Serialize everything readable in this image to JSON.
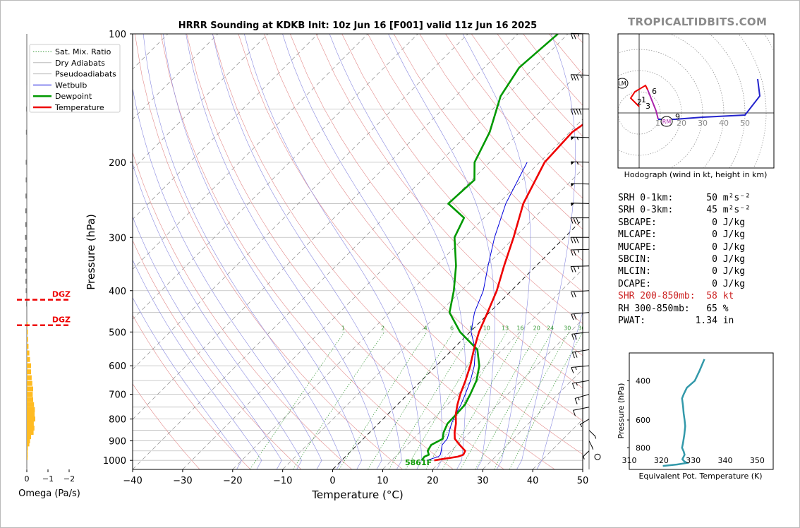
{
  "title": "HRRR Sounding at KDKB Init: 10z Jun 16 [F001] valid 11z Jun 16 2025",
  "brand": "TROPICALTIDBITS.COM",
  "colors": {
    "temperature": "#ee0000",
    "dewpoint": "#009900",
    "wetbulb": "#0000dd",
    "omega": "#ffbb22",
    "omega_neg": "#777777",
    "dgz": "#ee0000",
    "thetae": "#3399aa",
    "shr": "#cc2222"
  },
  "skewt": {
    "xlabel": "Temperature (°C)",
    "ylabel": "Pressure (hPa)",
    "x_ticks": [
      "−40",
      "−30",
      "−20",
      "−10",
      "0",
      "10",
      "20",
      "30",
      "40",
      "50"
    ],
    "p_ticks": [
      "100",
      "200",
      "300",
      "400",
      "500",
      "600",
      "700",
      "800",
      "900",
      "1000"
    ],
    "mix_labels": [
      "1",
      "2",
      "4",
      "6",
      "8",
      "10",
      "13",
      "16",
      "20",
      "24",
      "30",
      "36"
    ],
    "legend": [
      "Sat. Mix. Ratio",
      "Dry Adiabats",
      "Pseudoadiabats",
      "Wetbulb",
      "Dewpoint",
      "Temperature"
    ],
    "surface_label": "5861F"
  },
  "chart_data": {
    "type": "line",
    "xlim": [
      -40,
      50
    ],
    "plim": [
      1050,
      100
    ],
    "log_pressure": true,
    "series": [
      {
        "name": "Temperature",
        "p": [
          1000,
          980,
          970,
          950,
          920,
          890,
          860,
          820,
          780,
          740,
          700,
          650,
          600,
          550,
          500,
          450,
          400,
          350,
          300,
          250,
          200,
          170,
          140,
          120,
          100
        ],
        "t": [
          18.5,
          22.5,
          23.2,
          22.8,
          20.5,
          18.3,
          17.0,
          15.5,
          13.6,
          12.0,
          10.5,
          8.8,
          6.8,
          4.3,
          1.8,
          -0.4,
          -2.9,
          -6.4,
          -10.2,
          -15.0,
          -19.0,
          -19.5,
          -16.5,
          -13.5,
          -12.0
        ]
      },
      {
        "name": "Dewpoint",
        "p": [
          1000,
          980,
          970,
          950,
          920,
          890,
          860,
          820,
          780,
          740,
          700,
          650,
          600,
          550,
          500,
          450,
          400,
          350,
          300,
          270,
          250,
          220,
          200,
          170,
          140,
          120,
          100
        ],
        "t": [
          16.0,
          15.8,
          16.3,
          15.3,
          14.8,
          15.9,
          14.8,
          13.8,
          13.7,
          13.5,
          12.5,
          11.0,
          8.6,
          5.0,
          -2.0,
          -8.0,
          -11.5,
          -16.0,
          -22.0,
          -24.0,
          -30.0,
          -29.5,
          -33.0,
          -36.0,
          -41.0,
          -43.0,
          -42.0
        ]
      },
      {
        "name": "Wetbulb",
        "p": [
          1000,
          980,
          970,
          950,
          920,
          890,
          860,
          820,
          780,
          740,
          700,
          650,
          600,
          550,
          500,
          450,
          400,
          350,
          300,
          250,
          200
        ],
        "t": [
          17.0,
          18.6,
          18.6,
          18.0,
          17.0,
          16.8,
          15.9,
          14.6,
          13.6,
          12.7,
          11.5,
          9.8,
          7.6,
          4.6,
          0.2,
          -3.0,
          -5.6,
          -9.6,
          -14.0,
          -18.5,
          -22.5
        ]
      }
    ],
    "omega": {
      "xlim": [
        0,
        -2
      ],
      "p": [
        985,
        970,
        955,
        935,
        915,
        900,
        880,
        860,
        840,
        820,
        800,
        780,
        760,
        740,
        720,
        700,
        680,
        660,
        640,
        620,
        600,
        580,
        560,
        540,
        520,
        500,
        480,
        430,
        400,
        380,
        360,
        340,
        320,
        300,
        280,
        260,
        240,
        220,
        200,
        170,
        150,
        130
      ],
      "values": [
        -0.02,
        -0.02,
        -0.03,
        -0.05,
        -0.12,
        -0.15,
        -0.2,
        -0.32,
        -0.36,
        -0.33,
        -0.4,
        -0.37,
        -0.38,
        -0.34,
        -0.3,
        -0.28,
        -0.3,
        -0.26,
        -0.23,
        -0.2,
        -0.2,
        -0.15,
        -0.12,
        -0.08,
        -0.06,
        -0.05,
        -0.02,
        0.03,
        0.05,
        0.06,
        0.07,
        0.07,
        0.08,
        0.08,
        0.07,
        0.07,
        0.06,
        0.05,
        0.05,
        0.04,
        0.03,
        0.02
      ],
      "dgz_p": [
        420,
        482
      ],
      "dgz_label": "DGZ",
      "tick_labels": [
        "0",
        "−1",
        "−2"
      ],
      "xlabel": "Omega (Pa/s)"
    },
    "hodograph": {
      "label": "Hodograph (wind in kt, height in km)",
      "ring_labels": [
        "10",
        "20",
        "30",
        "40",
        "50"
      ],
      "segments": [
        {
          "color": "#ee0000",
          "u": [
            0,
            -4,
            -2,
            3,
            4
          ],
          "v": [
            3,
            7,
            10,
            13,
            11
          ]
        },
        {
          "color": "#aa22aa",
          "u": [
            4,
            6,
            8,
            9
          ],
          "v": [
            11,
            6,
            1,
            -3
          ]
        },
        {
          "color": "#2222cc",
          "u": [
            9,
            12,
            17,
            30,
            50,
            57,
            56
          ],
          "v": [
            -3,
            -3,
            -3,
            -2,
            -1,
            8,
            16
          ]
        }
      ],
      "height_labels": [
        {
          "t": "1",
          "u": 1,
          "v": 5
        },
        {
          "t": "2",
          "u": -1,
          "v": 4
        },
        {
          "t": "3",
          "u": 3,
          "v": 2
        },
        {
          "t": "6",
          "u": 6,
          "v": 9
        },
        {
          "t": "9",
          "u": 17,
          "v": -3
        }
      ],
      "markers": [
        {
          "t": "LM",
          "u": -8,
          "v": 14
        },
        {
          "t": "RM",
          "u": 13,
          "v": -4
        }
      ]
    },
    "theta_e": {
      "p": [
        320,
        360,
        400,
        430,
        460,
        480,
        520,
        560,
        600,
        640,
        700,
        760,
        800,
        830,
        860,
        900,
        920,
        935,
        950,
        965
      ],
      "values": [
        333.5,
        332,
        330.5,
        328,
        327,
        326.5,
        326.8,
        327,
        327.3,
        327.5,
        327.2,
        326.8,
        326.5,
        327,
        327.3,
        326.6,
        327.2,
        328,
        325,
        320.5
      ],
      "xlim": [
        310,
        355
      ],
      "ylim": [
        1000,
        300
      ],
      "x_ticks": [
        "310",
        "320",
        "330",
        "340",
        "350"
      ],
      "y_ticks": [
        "400",
        "600",
        "800"
      ],
      "xlabel": "Equivalent Pot. Temperature (K)",
      "ylabel": "Pressure (hPa)"
    },
    "wind_barbs": [
      {
        "p": 1000,
        "speed": 0,
        "dir": 0
      },
      {
        "p": 950,
        "speed": 5,
        "dir": 200
      },
      {
        "p": 900,
        "speed": 5,
        "dir": 170
      },
      {
        "p": 850,
        "speed": 5,
        "dir": 160
      },
      {
        "p": 800,
        "speed": 5,
        "dir": 210
      },
      {
        "p": 750,
        "speed": 10,
        "dir": 240
      },
      {
        "p": 700,
        "speed": 15,
        "dir": 230
      },
      {
        "p": 650,
        "speed": 15,
        "dir": 245
      },
      {
        "p": 600,
        "speed": 15,
        "dir": 255
      },
      {
        "p": 550,
        "speed": 20,
        "dir": 245
      },
      {
        "p": 500,
        "speed": 20,
        "dir": 250
      },
      {
        "p": 450,
        "speed": 20,
        "dir": 255
      },
      {
        "p": 400,
        "speed": 20,
        "dir": 260
      },
      {
        "p": 350,
        "speed": 25,
        "dir": 265
      },
      {
        "p": 320,
        "speed": 25,
        "dir": 265
      },
      {
        "p": 300,
        "speed": 30,
        "dir": 270
      },
      {
        "p": 270,
        "speed": 30,
        "dir": 270
      },
      {
        "p": 250,
        "speed": 50,
        "dir": 275
      },
      {
        "p": 225,
        "speed": 50,
        "dir": 275
      },
      {
        "p": 200,
        "speed": 55,
        "dir": 275
      },
      {
        "p": 175,
        "speed": 55,
        "dir": 275
      },
      {
        "p": 150,
        "speed": 40,
        "dir": 270
      },
      {
        "p": 125,
        "speed": 35,
        "dir": 275
      },
      {
        "p": 100,
        "speed": 25,
        "dir": 275
      }
    ]
  },
  "params": [
    {
      "label": "SRH 0-1km:",
      "value": "50",
      "unit": "m²s⁻²",
      "highlight": false
    },
    {
      "label": "SRH 0-3km:",
      "value": "45",
      "unit": "m²s⁻²",
      "highlight": false
    },
    {
      "label": "SBCAPE:",
      "value": "0",
      "unit": "J/kg",
      "highlight": false
    },
    {
      "label": "MLCAPE:",
      "value": "0",
      "unit": "J/kg",
      "highlight": false
    },
    {
      "label": "MUCAPE:",
      "value": "0",
      "unit": "J/kg",
      "highlight": false
    },
    {
      "label": "SBCIN:",
      "value": "0",
      "unit": "J/kg",
      "highlight": false
    },
    {
      "label": "MLCIN:",
      "value": "0",
      "unit": "J/kg",
      "highlight": false
    },
    {
      "label": "DCAPE:",
      "value": "0",
      "unit": "J/kg",
      "highlight": false
    },
    {
      "label": "SHR 200-850mb:",
      "value": "58",
      "unit": "kt",
      "highlight": true
    },
    {
      "label": "RH 300-850mb:",
      "value": "65",
      "unit": "%",
      "highlight": false
    },
    {
      "label": "PWAT:",
      "value": "1.34",
      "unit": "in",
      "highlight": false
    }
  ]
}
